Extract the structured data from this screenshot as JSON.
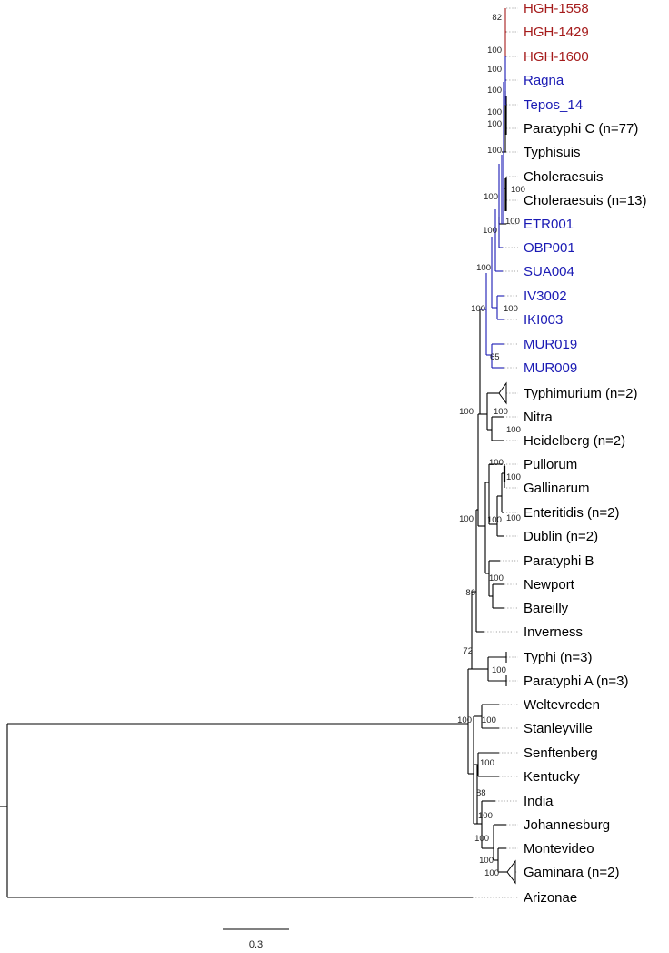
{
  "colors": {
    "ancient_red": "#a51b1b",
    "ancient_blue": "#1a1ab4",
    "modern": "#000000"
  },
  "leaves": [
    {
      "id": "hgh1558",
      "label": "HGH-1558",
      "group": "ancient_red"
    },
    {
      "id": "hgh1429",
      "label": "HGH-1429",
      "group": "ancient_red"
    },
    {
      "id": "hgh1600",
      "label": "HGH-1600",
      "group": "ancient_red"
    },
    {
      "id": "ragna",
      "label": "Ragna",
      "group": "ancient_blue"
    },
    {
      "id": "tepos14",
      "label": "Tepos_14",
      "group": "ancient_blue"
    },
    {
      "id": "paratyphic",
      "label": "Paratyphi C (n=77)",
      "group": "modern"
    },
    {
      "id": "typhisuis",
      "label": "Typhisuis",
      "group": "modern"
    },
    {
      "id": "choleraesuis",
      "label": "Choleraesuis",
      "group": "modern"
    },
    {
      "id": "choleraesuis13",
      "label": "Choleraesuis (n=13)",
      "group": "modern"
    },
    {
      "id": "etr001",
      "label": "ETR001",
      "group": "ancient_blue"
    },
    {
      "id": "obp001",
      "label": "OBP001",
      "group": "ancient_blue"
    },
    {
      "id": "sua004",
      "label": "SUA004",
      "group": "ancient_blue"
    },
    {
      "id": "iv3002",
      "label": "IV3002",
      "group": "ancient_blue"
    },
    {
      "id": "iki003",
      "label": "IKI003",
      "group": "ancient_blue"
    },
    {
      "id": "mur019",
      "label": "MUR019",
      "group": "ancient_blue"
    },
    {
      "id": "mur009",
      "label": "MUR009",
      "group": "ancient_blue"
    },
    {
      "id": "typhimurium",
      "label": "Typhimurium (n=2)",
      "group": "modern"
    },
    {
      "id": "nitra",
      "label": "Nitra",
      "group": "modern"
    },
    {
      "id": "heidelberg",
      "label": "Heidelberg (n=2)",
      "group": "modern"
    },
    {
      "id": "pullorum",
      "label": "Pullorum",
      "group": "modern"
    },
    {
      "id": "gallinarum",
      "label": "Gallinarum",
      "group": "modern"
    },
    {
      "id": "enteritidis",
      "label": "Enteritidis (n=2)",
      "group": "modern"
    },
    {
      "id": "dublin",
      "label": "Dublin (n=2)",
      "group": "modern"
    },
    {
      "id": "paratyphib",
      "label": "Paratyphi B",
      "group": "modern"
    },
    {
      "id": "newport",
      "label": "Newport",
      "group": "modern"
    },
    {
      "id": "bareilly",
      "label": "Bareilly",
      "group": "modern"
    },
    {
      "id": "inverness",
      "label": "Inverness",
      "group": "modern"
    },
    {
      "id": "typhi",
      "label": "Typhi (n=3)",
      "group": "modern"
    },
    {
      "id": "paratyphia",
      "label": "Paratyphi A (n=3)",
      "group": "modern"
    },
    {
      "id": "weltevreden",
      "label": "Weltevreden",
      "group": "modern"
    },
    {
      "id": "stanleyville",
      "label": "Stanleyville",
      "group": "modern"
    },
    {
      "id": "senftenberg",
      "label": "Senftenberg",
      "group": "modern"
    },
    {
      "id": "kentucky",
      "label": "Kentucky",
      "group": "modern"
    },
    {
      "id": "india",
      "label": "India",
      "group": "modern"
    },
    {
      "id": "johannesburg",
      "label": "Johannesburg",
      "group": "modern"
    },
    {
      "id": "montevideo",
      "label": "Montevideo",
      "group": "modern"
    },
    {
      "id": "gaminara",
      "label": "Gaminara (n=2)",
      "group": "modern"
    },
    {
      "id": "arizonae",
      "label": "Arizonae",
      "group": "modern"
    }
  ],
  "support_values": [
    {
      "id": "s82",
      "value": "82"
    },
    {
      "id": "s100a",
      "value": "100"
    },
    {
      "id": "s100b",
      "value": "100"
    },
    {
      "id": "s100c",
      "value": "100"
    },
    {
      "id": "s100d",
      "value": "100"
    },
    {
      "id": "s100e",
      "value": "100"
    },
    {
      "id": "s100f",
      "value": "100"
    },
    {
      "id": "s100g",
      "value": "100"
    },
    {
      "id": "s100h",
      "value": "100"
    },
    {
      "id": "s100i",
      "value": "100"
    },
    {
      "id": "s100j",
      "value": "100"
    },
    {
      "id": "s100k",
      "value": "100"
    },
    {
      "id": "s100l",
      "value": "100"
    },
    {
      "id": "s100m",
      "value": "100"
    },
    {
      "id": "s65",
      "value": "65"
    },
    {
      "id": "s100n",
      "value": "100"
    },
    {
      "id": "s100o",
      "value": "100"
    },
    {
      "id": "s100p",
      "value": "100"
    },
    {
      "id": "s100q",
      "value": "100"
    },
    {
      "id": "s100r",
      "value": "100"
    },
    {
      "id": "s100s",
      "value": "100"
    },
    {
      "id": "s100t",
      "value": "100"
    },
    {
      "id": "s100u",
      "value": "100"
    },
    {
      "id": "s100v",
      "value": "100"
    },
    {
      "id": "s86",
      "value": "86"
    },
    {
      "id": "s72",
      "value": "72"
    },
    {
      "id": "s100w",
      "value": "100"
    },
    {
      "id": "s100x",
      "value": "100"
    },
    {
      "id": "s100y",
      "value": "100"
    },
    {
      "id": "s100z",
      "value": "100"
    },
    {
      "id": "s88",
      "value": "88"
    },
    {
      "id": "s100aa",
      "value": "100"
    },
    {
      "id": "s100ab",
      "value": "100"
    },
    {
      "id": "s100ac",
      "value": "100"
    },
    {
      "id": "s100ad",
      "value": "100"
    }
  ],
  "scale_bar": {
    "value": 0.3,
    "label": "0.3"
  }
}
